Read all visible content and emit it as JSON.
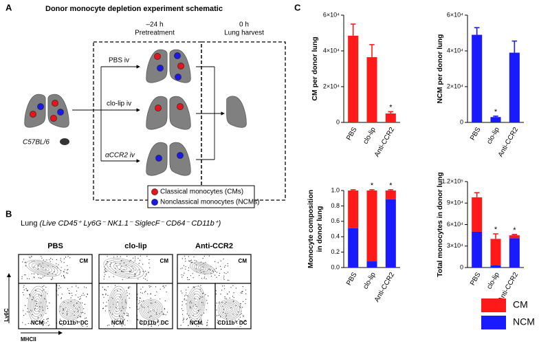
{
  "panel_a": {
    "label": "A",
    "title": "Donor monocyte depletion experiment schematic",
    "pretreatment_time": "–24 h",
    "pretreatment": "Pretreatment",
    "harvest_time": "0 h",
    "harvest": "Lung harvest",
    "mouse": "C57BL/6",
    "treatments": [
      "PBS iv",
      "clo-lip iv",
      "αCCR2 iv"
    ],
    "legend": [
      {
        "label": "Classical monocytes (CMs)",
        "color": "#e8141b"
      },
      {
        "label": "Nonclassical monocytes (NCMs)",
        "color": "#1a1ae6"
      }
    ]
  },
  "panel_b": {
    "label": "B",
    "title_prefix": "Lung",
    "title_gating": "(Live CD45⁺ Ly6G⁻ NK1.1⁻ SiglecF⁻ CD64⁻ CD11b⁺)",
    "plots": [
      "PBS",
      "clo-lip",
      "Anti-CCR2"
    ],
    "gates": [
      "CM",
      "NCM",
      "CD11b⁺ DC"
    ],
    "y_axis": "Ly6C",
    "x_axis": "MHCII"
  },
  "panel_c": {
    "label": "C"
  },
  "chart_data": [
    {
      "type": "bar",
      "y_label": "CM per donor lung",
      "categories": [
        "PBS",
        "clo-lip",
        "Anti-CCR2"
      ],
      "values": [
        48500,
        36500,
        5000
      ],
      "errors": [
        6500,
        7000,
        1000
      ],
      "color": "#ff1a1a",
      "ylim": [
        0,
        60000
      ],
      "yticks": [
        0,
        {
          "value": 20000,
          "label": "2×10⁴"
        },
        {
          "value": 40000,
          "label": "4×10⁴"
        },
        {
          "value": 60000,
          "label": "6×10⁴"
        }
      ],
      "significance": [
        null,
        null,
        "*"
      ]
    },
    {
      "type": "bar",
      "y_label": "NCM per donor lung",
      "categories": [
        "PBS",
        "clo-lip",
        "Anti-CCR2"
      ],
      "values": [
        49000,
        3000,
        39000
      ],
      "errors": [
        4000,
        500,
        6500
      ],
      "color": "#1a1aff",
      "ylim": [
        0,
        60000
      ],
      "yticks": [
        0,
        {
          "value": 20000,
          "label": "2×10⁴"
        },
        {
          "value": 40000,
          "label": "4×10⁴"
        },
        {
          "value": 60000,
          "label": "6×10⁴"
        }
      ],
      "significance": [
        null,
        "*",
        null
      ]
    },
    {
      "type": "bar",
      "stacked": true,
      "y_label": [
        "Monocyte composition",
        "in donor lung"
      ],
      "categories": [
        "PBS",
        "clo-lip",
        "Anti-CCR2"
      ],
      "series": [
        {
          "name": "NCM",
          "color": "#1a1aff",
          "values": [
            0.51,
            0.08,
            0.885
          ],
          "errors": [
            0.01,
            0.01,
            0.01
          ]
        },
        {
          "name": "CM",
          "color": "#ff1a1a",
          "values": [
            0.49,
            0.92,
            0.115
          ],
          "errors": [
            0.01,
            0.01,
            0.01
          ]
        }
      ],
      "ylim": [
        0,
        1
      ],
      "yticks": [
        {
          "value": 0,
          "label": "0.0"
        },
        0.2,
        0.4,
        0.6,
        0.8,
        {
          "value": 1,
          "label": "1.0"
        }
      ],
      "significance": [
        null,
        "*",
        "*"
      ]
    },
    {
      "type": "bar",
      "stacked": true,
      "y_label": "Total monocytes in donor lung",
      "categories": [
        "PBS",
        "clo-lip",
        "Anti-CCR2"
      ],
      "series": [
        {
          "name": "NCM",
          "color": "#1a1aff",
          "values": [
            50000,
            3000,
            41000
          ],
          "errors": [
            4000,
            500,
            5000
          ]
        },
        {
          "name": "CM",
          "color": "#ff1a1a",
          "values": [
            48000,
            37000,
            4000
          ],
          "errors": [
            6500,
            7000,
            1000
          ]
        }
      ],
      "ylim": [
        0,
        120000
      ],
      "yticks": [
        0,
        {
          "value": 30000,
          "label": "3×10⁴"
        },
        {
          "value": 60000,
          "label": "6×10⁴"
        },
        {
          "value": 90000,
          "label": "9×10⁴"
        },
        {
          "value": 120000,
          "label": "1.2×10⁵"
        }
      ],
      "significance": [
        null,
        "*",
        "*"
      ],
      "legend": "below"
    }
  ]
}
